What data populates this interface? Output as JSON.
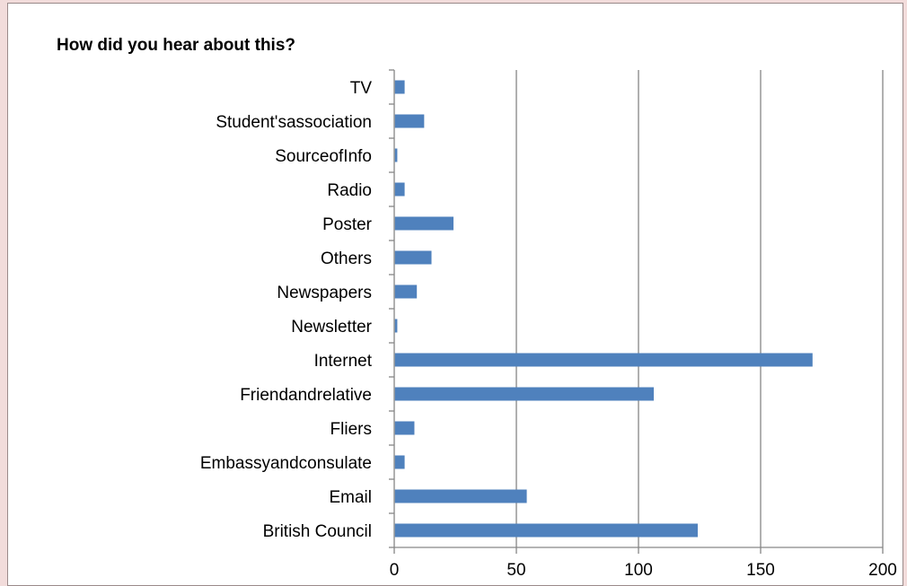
{
  "chart_data": {
    "type": "bar",
    "orientation": "horizontal",
    "title": "How did you hear about this?",
    "xlabel": "",
    "ylabel": "",
    "categories": [
      "TV",
      "Student'sassociation",
      "SourceofInfo",
      "Radio",
      "Poster",
      "Others",
      "Newspapers",
      "Newsletter",
      "Internet",
      "Friendandrelative",
      "Fliers",
      "Embassyandconsulate",
      "Email",
      "British Council"
    ],
    "values": [
      4,
      12,
      1,
      4,
      24,
      15,
      9,
      1,
      171,
      106,
      8,
      4,
      54,
      124
    ],
    "xlim": [
      0,
      200
    ],
    "xticks": [
      "0",
      "50",
      "100",
      "150",
      "200"
    ],
    "grid": "vertical",
    "legend": "none",
    "colors": {
      "bar": "#4f81bd",
      "grid": "#868686",
      "axis": "#868686"
    }
  }
}
